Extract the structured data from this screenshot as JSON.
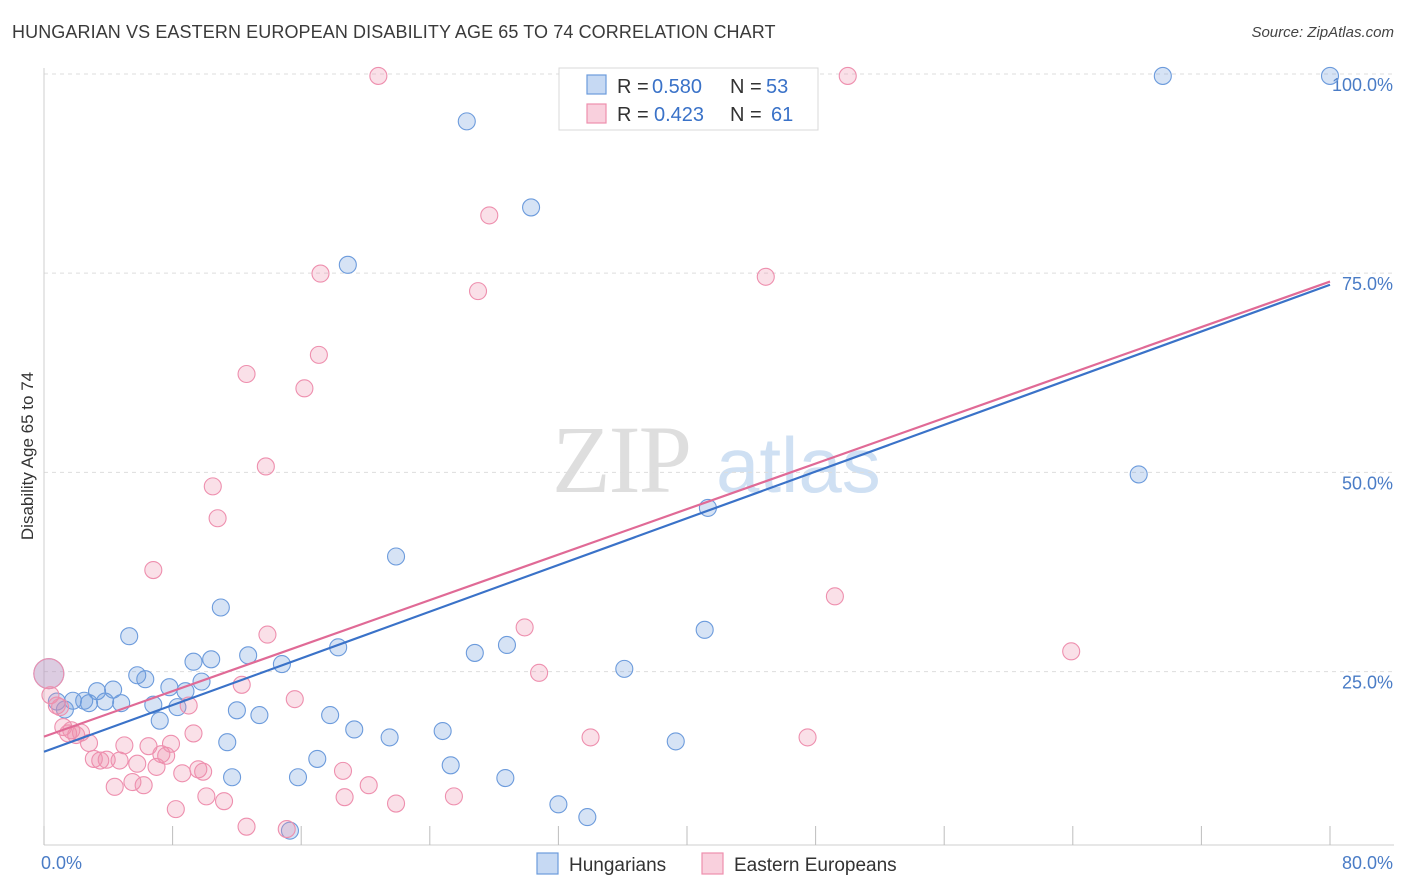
{
  "title": "HUNGARIAN VS EASTERN EUROPEAN DISABILITY AGE 65 TO 74 CORRELATION CHART",
  "source": "Source: ZipAtlas.com",
  "watermark": {
    "zip": "ZIP",
    "atlas": "atlas"
  },
  "legend_top": [
    {
      "r_label": "R =",
      "r_value": "0.580",
      "n_label": "N =",
      "n_value": "53"
    },
    {
      "r_label": "R =",
      "r_value": "0.423",
      "n_label": "N =",
      "n_value": "61"
    }
  ],
  "chart_data": {
    "type": "scatter",
    "title": "HUNGARIAN VS EASTERN EUROPEAN DISABILITY AGE 65 TO 74 CORRELATION CHART",
    "xlabel": "",
    "ylabel": "Disability Age 65 to 74",
    "xlim": [
      0,
      80
    ],
    "ylim": [
      3.5,
      102
    ],
    "x_tick_labels": [
      {
        "value": 0,
        "label": "0.0%"
      },
      {
        "value": 80,
        "label": "80.0%"
      }
    ],
    "y_tick_labels": [
      {
        "value": 25,
        "label": "25.0%"
      },
      {
        "value": 50,
        "label": "50.0%"
      },
      {
        "value": 75,
        "label": "75.0%"
      },
      {
        "value": 100,
        "label": "100.0%"
      }
    ],
    "x_minor_ticks": [
      0,
      8,
      16,
      24,
      32,
      40,
      48,
      56,
      64,
      72,
      80
    ],
    "grid_y": [
      25,
      50,
      75,
      100
    ],
    "colors": {
      "Hungarians": "#6c9bdc",
      "Eastern Europeans": "#ee8fae",
      "Hungarians_line": "#3a72c8",
      "Eastern Europeans_line": "#e06a96"
    },
    "series": [
      {
        "name": "Hungarians",
        "r": 0.58,
        "n": 53,
        "trend": [
          [
            0,
            15.2
          ],
          [
            80,
            73.8
          ]
        ],
        "points": [
          [
            0.3,
            25.0
          ],
          [
            0.8,
            21.5
          ],
          [
            1.3,
            20.5
          ],
          [
            1.8,
            21.6
          ],
          [
            2.5,
            21.6
          ],
          [
            2.8,
            21.3
          ],
          [
            3.3,
            22.8
          ],
          [
            4.3,
            23.0
          ],
          [
            4.8,
            21.3
          ],
          [
            3.8,
            21.5
          ],
          [
            5.3,
            29.7
          ],
          [
            5.8,
            24.8
          ],
          [
            6.3,
            24.3
          ],
          [
            6.8,
            21.1
          ],
          [
            7.2,
            19.1
          ],
          [
            7.8,
            23.3
          ],
          [
            8.3,
            20.8
          ],
          [
            8.8,
            22.8
          ],
          [
            9.3,
            26.5
          ],
          [
            9.8,
            24.0
          ],
          [
            10.4,
            26.8
          ],
          [
            11.0,
            33.3
          ],
          [
            11.4,
            16.4
          ],
          [
            11.7,
            12.0
          ],
          [
            12.0,
            20.4
          ],
          [
            12.7,
            27.3
          ],
          [
            13.4,
            19.8
          ],
          [
            14.8,
            26.2
          ],
          [
            15.3,
            5.3
          ],
          [
            15.8,
            12.0
          ],
          [
            17.0,
            14.3
          ],
          [
            17.8,
            19.8
          ],
          [
            18.3,
            28.3
          ],
          [
            18.9,
            76.3
          ],
          [
            19.3,
            18.0
          ],
          [
            21.5,
            17.0
          ],
          [
            21.9,
            39.7
          ],
          [
            24.8,
            17.8
          ],
          [
            25.3,
            13.5
          ],
          [
            26.3,
            94.3
          ],
          [
            26.8,
            27.6
          ],
          [
            28.7,
            11.9
          ],
          [
            28.8,
            28.6
          ],
          [
            30.3,
            83.5
          ],
          [
            32.0,
            8.6
          ],
          [
            33.8,
            7.0
          ],
          [
            36.1,
            25.6
          ],
          [
            39.3,
            16.5
          ],
          [
            41.1,
            30.5
          ],
          [
            41.3,
            45.8
          ],
          [
            68.1,
            50.0
          ],
          [
            69.6,
            100.0
          ],
          [
            80.0,
            100.0
          ]
        ]
      },
      {
        "name": "Eastern Europeans",
        "r": 0.423,
        "n": 61,
        "trend": [
          [
            0,
            17.1
          ],
          [
            80,
            74.2
          ]
        ],
        "points": [
          [
            0.4,
            22.3
          ],
          [
            0.8,
            21.0
          ],
          [
            1.2,
            18.3
          ],
          [
            1.5,
            17.5
          ],
          [
            1.7,
            17.9
          ],
          [
            2.0,
            17.3
          ],
          [
            2.3,
            17.6
          ],
          [
            2.8,
            16.3
          ],
          [
            3.1,
            14.3
          ],
          [
            3.5,
            14.1
          ],
          [
            3.9,
            14.2
          ],
          [
            4.4,
            10.8
          ],
          [
            4.7,
            14.1
          ],
          [
            5.0,
            16.0
          ],
          [
            5.5,
            11.4
          ],
          [
            5.8,
            13.7
          ],
          [
            6.2,
            11.0
          ],
          [
            6.5,
            15.9
          ],
          [
            6.8,
            38.0
          ],
          [
            7.0,
            13.3
          ],
          [
            7.3,
            14.9
          ],
          [
            7.6,
            14.7
          ],
          [
            7.9,
            16.2
          ],
          [
            8.2,
            8.0
          ],
          [
            8.6,
            12.5
          ],
          [
            9.0,
            21.0
          ],
          [
            9.3,
            17.5
          ],
          [
            9.6,
            13.0
          ],
          [
            9.9,
            12.7
          ],
          [
            10.1,
            9.6
          ],
          [
            10.5,
            48.5
          ],
          [
            10.8,
            44.5
          ],
          [
            11.2,
            9.0
          ],
          [
            12.3,
            23.6
          ],
          [
            12.6,
            62.6
          ],
          [
            12.6,
            5.8
          ],
          [
            13.8,
            51.0
          ],
          [
            13.9,
            29.9
          ],
          [
            15.1,
            5.5
          ],
          [
            15.6,
            21.8
          ],
          [
            16.2,
            60.8
          ],
          [
            17.1,
            65.0
          ],
          [
            17.2,
            75.2
          ],
          [
            18.6,
            12.8
          ],
          [
            18.7,
            9.5
          ],
          [
            20.2,
            11.0
          ],
          [
            20.8,
            100.0
          ],
          [
            21.9,
            8.7
          ],
          [
            25.5,
            9.6
          ],
          [
            27.0,
            73.0
          ],
          [
            27.7,
            82.5
          ],
          [
            29.9,
            30.8
          ],
          [
            30.8,
            25.1
          ],
          [
            34.0,
            17.0
          ],
          [
            44.9,
            74.8
          ],
          [
            47.5,
            17.0
          ],
          [
            49.2,
            34.7
          ],
          [
            50.0,
            100.0
          ],
          [
            63.9,
            27.8
          ],
          [
            0.3,
            25.0
          ],
          [
            1.0,
            20.8
          ]
        ]
      }
    ],
    "legend": {
      "position": "bottom-center",
      "entries": [
        "Hungarians",
        "Eastern Europeans"
      ]
    }
  }
}
